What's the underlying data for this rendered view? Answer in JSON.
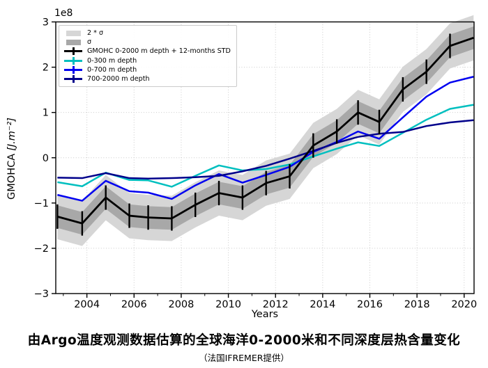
{
  "caption": {
    "title": "由Argo温度观测数据估算的全球海洋0-2000米和不同深度层热含量变化",
    "subtitle": "（法国IFREMER提供）"
  },
  "chart_data": {
    "type": "line",
    "title": "",
    "xlabel": "Years",
    "ylabel": "GMOHCA [J.m⁻²]",
    "ylabel_parts": {
      "name": "GMOHCA",
      "unit": "[J.m⁻²]"
    },
    "y_offset_label": "1e8",
    "xlim": [
      2002.68,
      2020.42
    ],
    "ylim": [
      -3,
      3
    ],
    "x_ticks": [
      2004,
      2006,
      2008,
      2010,
      2012,
      2014,
      2016,
      2018,
      2020
    ],
    "x_minor_ticks": [
      2003,
      2005,
      2007,
      2009,
      2011,
      2013,
      2015,
      2017,
      2019
    ],
    "y_ticks": [
      -3,
      -2,
      -1,
      0,
      1,
      2,
      3
    ],
    "grid": true,
    "legend_position": "upper-left",
    "band_colors": {
      "sigma2": "#d6d6d6",
      "sigma": "#a8a8a8"
    },
    "x": [
      2002.75,
      2003.8,
      2004.8,
      2005.8,
      2006.6,
      2007.6,
      2008.6,
      2009.6,
      2010.6,
      2011.6,
      2012.6,
      2013.6,
      2014.6,
      2015.5,
      2016.4,
      2017.4,
      2018.4,
      2019.4,
      2020.4
    ],
    "series": [
      {
        "id": "gmohc-0-2000",
        "name": "GMOHC 0-2000 m depth + 12-months STD",
        "color": "#000000",
        "error_bar_half": 0.27,
        "band_sigma": 0.25,
        "band_2sigma": 0.5,
        "values": [
          -1.3,
          -1.45,
          -0.88,
          -1.28,
          -1.32,
          -1.34,
          -1.04,
          -0.78,
          -0.88,
          -0.56,
          -0.41,
          0.27,
          0.58,
          1.0,
          0.79,
          1.51,
          1.9,
          2.47,
          2.65
        ]
      },
      {
        "id": "0-300",
        "name": "0-300 m depth",
        "color": "#00bfbf",
        "values": [
          -0.54,
          -0.63,
          -0.33,
          -0.49,
          -0.5,
          -0.64,
          -0.4,
          -0.17,
          -0.28,
          -0.25,
          -0.15,
          0.03,
          0.2,
          0.34,
          0.26,
          0.55,
          0.84,
          1.08,
          1.17
        ]
      },
      {
        "id": "0-700",
        "name": "0-700 m depth",
        "color": "#0000f0",
        "values": [
          -0.82,
          -0.95,
          -0.51,
          -0.74,
          -0.77,
          -0.91,
          -0.61,
          -0.36,
          -0.55,
          -0.38,
          -0.2,
          0.13,
          0.35,
          0.58,
          0.42,
          0.89,
          1.35,
          1.66,
          1.79
        ]
      },
      {
        "id": "700-2000",
        "name": "700-2000 m depth",
        "color": "#00008b",
        "values": [
          -0.44,
          -0.45,
          -0.34,
          -0.45,
          -0.46,
          -0.45,
          -0.43,
          -0.4,
          -0.3,
          -0.18,
          -0.02,
          0.15,
          0.33,
          0.46,
          0.53,
          0.57,
          0.7,
          0.78,
          0.83
        ]
      }
    ],
    "legend": {
      "items": [
        {
          "type": "patch",
          "color": "#d6d6d6",
          "label": "2 * σ"
        },
        {
          "type": "patch",
          "color": "#a8a8a8",
          "label": "σ"
        },
        {
          "type": "errline",
          "color": "#000000",
          "label": "GMOHC 0-2000 m depth + 12-months STD"
        },
        {
          "type": "errline",
          "color": "#00bfbf",
          "label": "0-300 m depth"
        },
        {
          "type": "errline",
          "color": "#0000f0",
          "label": "0-700 m depth"
        },
        {
          "type": "errline",
          "color": "#00008b",
          "label": "700-2000 m depth"
        }
      ]
    }
  }
}
